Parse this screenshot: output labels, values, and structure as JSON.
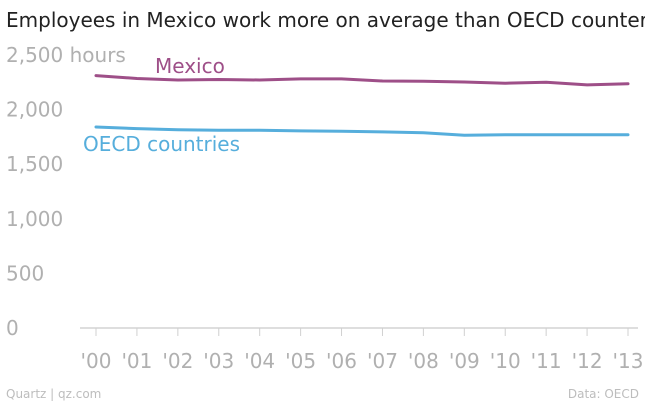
{
  "chart_data": {
    "type": "line",
    "title": "Employees in Mexico work more on average than OECD counterparts",
    "y_unit": "hours",
    "x_ticks": [
      "'00",
      "'01",
      "'02",
      "'03",
      "'04",
      "'05",
      "'06",
      "'07",
      "'08",
      "'09",
      "'10",
      "'11",
      "'12",
      "'13"
    ],
    "y_ticks": [
      {
        "value": 0,
        "label": "0"
      },
      {
        "value": 500,
        "label": "500"
      },
      {
        "value": 1000,
        "label": "1,000"
      },
      {
        "value": 1500,
        "label": "1,500"
      },
      {
        "value": 2000,
        "label": "2,000"
      },
      {
        "value": 2500,
        "label": "2,500 hours"
      }
    ],
    "ylim": [
      0,
      2500
    ],
    "x": [
      2000,
      2001,
      2002,
      2003,
      2004,
      2005,
      2006,
      2007,
      2008,
      2009,
      2010,
      2011,
      2012,
      2013
    ],
    "series": [
      {
        "name": "Mexico",
        "color": "#9e4f88",
        "values": [
          2311,
          2285,
          2271,
          2276,
          2271,
          2281,
          2281,
          2262,
          2260,
          2253,
          2242,
          2250,
          2226,
          2237
        ]
      },
      {
        "name": "OECD countries",
        "color": "#56aedc",
        "values": [
          1841,
          1826,
          1816,
          1810,
          1810,
          1805,
          1802,
          1796,
          1788,
          1765,
          1770,
          1769,
          1770,
          1770
        ]
      }
    ],
    "grid": false
  },
  "footer": {
    "source_left": "Quartz | qz.com",
    "source_right": "Data: OECD"
  }
}
